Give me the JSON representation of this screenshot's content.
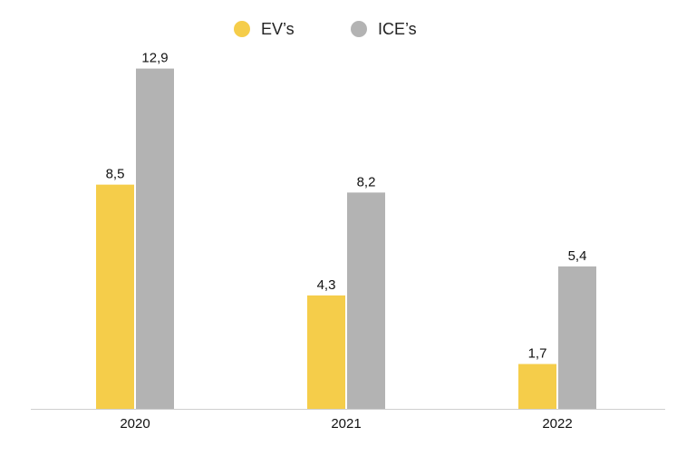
{
  "colors": {
    "ev": "#F5CD4A",
    "ice": "#B3B3B3",
    "axis": "#CFCFCF"
  },
  "legend": {
    "ev_label": "EV’s",
    "ice_label": "ICE’s"
  },
  "chart_data": {
    "type": "bar",
    "title": "",
    "xlabel": "",
    "ylabel": "",
    "categories": [
      "2020",
      "2021",
      "2022"
    ],
    "series": [
      {
        "name": "EV’s",
        "values": [
          8.5,
          4.3,
          1.7
        ],
        "labels": [
          "8,5",
          "4,3",
          "1,7"
        ]
      },
      {
        "name": "ICE’s",
        "values": [
          12.9,
          8.2,
          5.4
        ],
        "labels": [
          "12,9",
          "8,2",
          "5,4"
        ]
      }
    ],
    "ylim": [
      0,
      14
    ],
    "grid": false,
    "legend_position": "top-center"
  }
}
